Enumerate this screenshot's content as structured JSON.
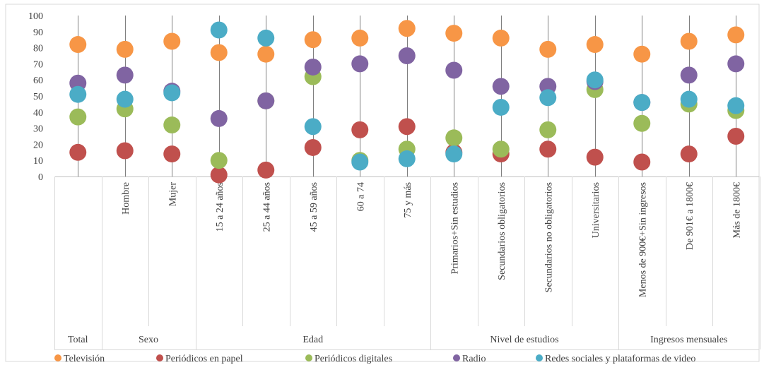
{
  "chart_data": {
    "type": "scatter",
    "title": "",
    "xlabel": "",
    "ylabel": "",
    "ylim": [
      0,
      100
    ],
    "yticks": [
      0,
      10,
      20,
      30,
      40,
      50,
      60,
      70,
      80,
      90,
      100
    ],
    "grid": false,
    "legend_position": "bottom",
    "categories": [
      "Total",
      "Hombre",
      "Mujer",
      "15 a 24 años",
      "25 a 44 años",
      "45 a 59 años",
      "60 a 74",
      "75 y más",
      "Primarios+Sin estudios",
      "Secundarios obligatorios",
      "Secundarios no obligatorios",
      "Universitarios",
      "Menos de 900€+Sin ingresos",
      "De 901€ a 1800€",
      "Más de 1800€"
    ],
    "groups": [
      {
        "label": "Total",
        "start": 0,
        "end": 0
      },
      {
        "label": "Sexo",
        "start": 1,
        "end": 2
      },
      {
        "label": "Edad",
        "start": 3,
        "end": 7
      },
      {
        "label": "Nivel de estudios",
        "start": 8,
        "end": 11
      },
      {
        "label": "Ingresos mensuales",
        "start": 12,
        "end": 14
      }
    ],
    "series": [
      {
        "name": "Periódicos en papel",
        "color": "#c0504d",
        "values": [
          15,
          16,
          14,
          1,
          4,
          18,
          29,
          31,
          15,
          14,
          17,
          12,
          9,
          14,
          25
        ]
      },
      {
        "name": "Periódicos digitales",
        "color": "#9bbb59",
        "values": [
          37,
          42,
          32,
          10,
          47,
          62,
          10,
          17,
          24,
          17,
          29,
          54,
          33,
          45,
          41
        ]
      },
      {
        "name": "Radio",
        "color": "#8064a2",
        "values": [
          58,
          63,
          53,
          36,
          47,
          68,
          70,
          75,
          66,
          56,
          56,
          59,
          46,
          63,
          70
        ]
      },
      {
        "name": "Televisión",
        "color": "#f79646",
        "values": [
          82,
          79,
          84,
          77,
          76,
          85,
          86,
          92,
          89,
          86,
          79,
          82,
          76,
          84,
          88
        ]
      },
      {
        "name": "Redes sociales y plataformas de video",
        "color": "#4bacc6",
        "values": [
          51,
          48,
          52,
          91,
          86,
          31,
          9,
          11,
          14,
          43,
          49,
          60,
          46,
          48,
          44
        ]
      }
    ],
    "legend_order": [
      "Televisión",
      "Periódicos en papel",
      "Periódicos digitales",
      "Radio",
      "Redes sociales y plataformas de video"
    ]
  }
}
